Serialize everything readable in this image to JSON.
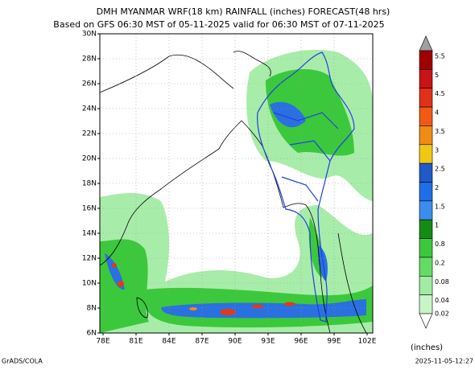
{
  "header": {
    "title": "DMH MYANMAR WRF(18 km) RAINFALL (inches) FORECAST(48 hrs)",
    "subtitle": "Based on GFS 06:30 MST of 05-11-2025 valid for 06:30 MST of 07-11-2025"
  },
  "map": {
    "lat_labels": [
      "30N",
      "28N",
      "26N",
      "24N",
      "22N",
      "20N",
      "18N",
      "16N",
      "14N",
      "12N",
      "10N",
      "8N",
      "6N"
    ],
    "lon_labels": [
      "78E",
      "81E",
      "84E",
      "87E",
      "90E",
      "93E",
      "96E",
      "99E",
      "102E"
    ]
  },
  "colorbar": {
    "levels": [
      "5.5",
      "5",
      "4.5",
      "4",
      "3.5",
      "3",
      "2.5",
      "2",
      "1.5",
      "1",
      "0.8",
      "0.2",
      "0.08",
      "0.04",
      "0.02"
    ],
    "unit": "(inches)"
  },
  "footer": {
    "left": "GrADS/COLA",
    "right": "2025-11-05-12:27"
  }
}
